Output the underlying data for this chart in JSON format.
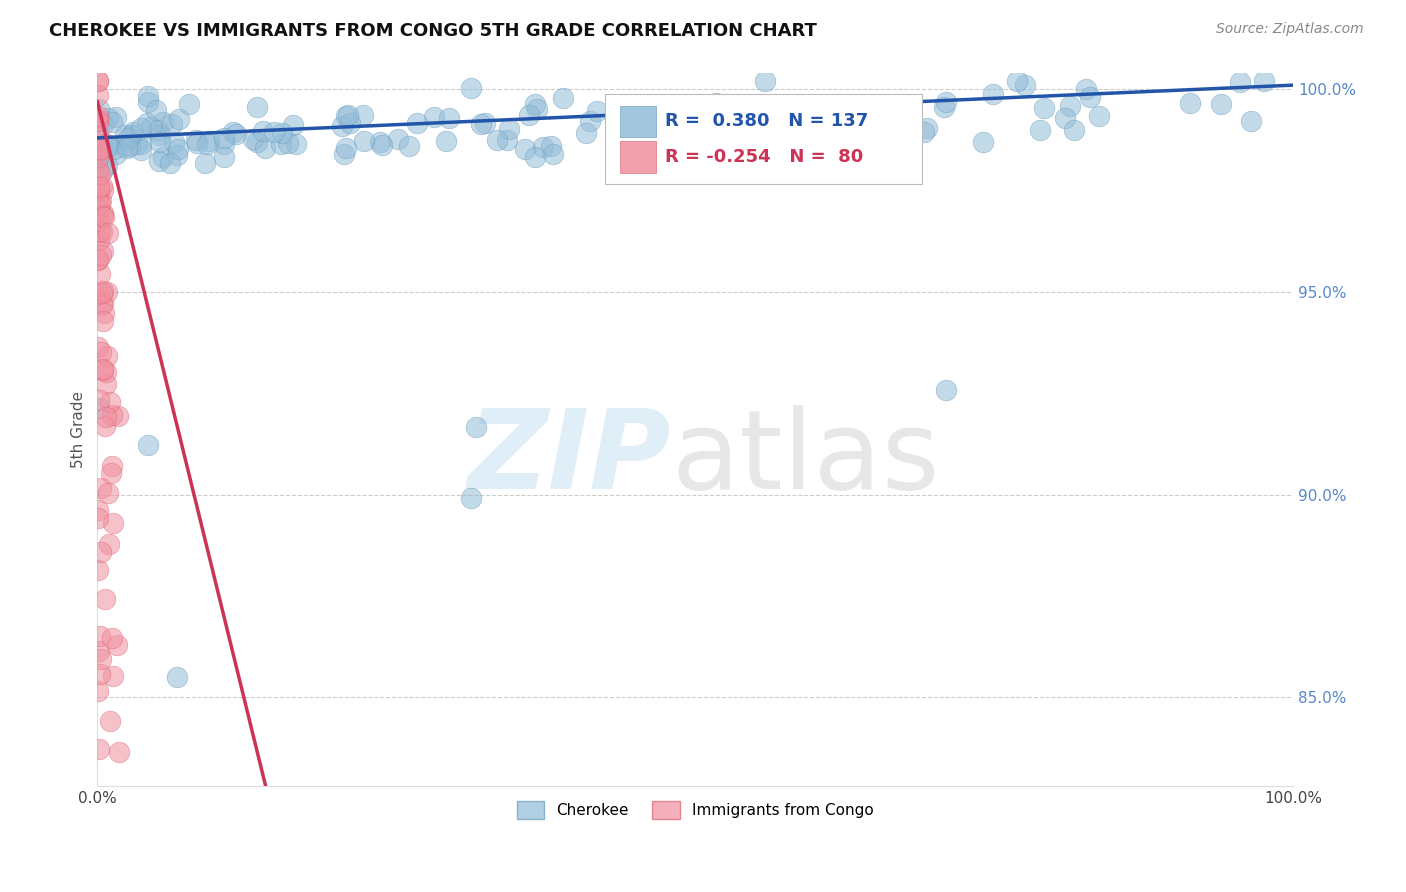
{
  "title": "CHEROKEE VS IMMIGRANTS FROM CONGO 5TH GRADE CORRELATION CHART",
  "source": "Source: ZipAtlas.com",
  "ylabel": "5th Grade",
  "xlim": [
    0.0,
    1.0
  ],
  "ylim": [
    0.828,
    1.004
  ],
  "yticks": [
    0.85,
    0.9,
    0.95,
    1.0
  ],
  "cherokee_color": "#92bcd8",
  "cherokee_edge": "#6699bb",
  "congo_color": "#f090a0",
  "congo_edge": "#e06070",
  "cherokee_R": 0.38,
  "cherokee_N": 137,
  "congo_R": -0.254,
  "congo_N": 80,
  "legend_cherokee": "Cherokee",
  "legend_congo": "Immigrants from Congo",
  "blue_trend_color": "#2255aa",
  "pink_trend_color": "#cc3355",
  "grid_color": "#cccccc",
  "title_fontsize": 13,
  "source_fontsize": 10,
  "ytick_color": "#5588cc",
  "ylabel_color": "#555555"
}
